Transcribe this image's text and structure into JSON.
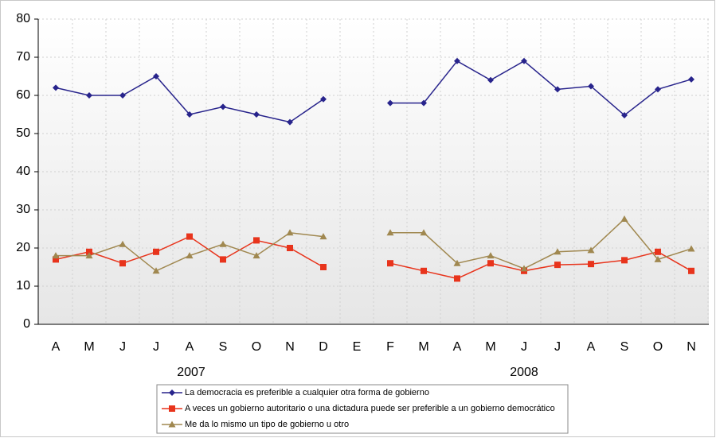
{
  "chart_data": {
    "type": "line",
    "categories": [
      "A",
      "M",
      "J",
      "J",
      "A",
      "S",
      "O",
      "N",
      "D",
      "E",
      "F",
      "M",
      "A",
      "M",
      "J",
      "J",
      "A",
      "S",
      "O",
      "N"
    ],
    "year_labels": [
      "2007",
      "2008"
    ],
    "series": [
      {
        "name": "La democracia es preferible a cualquier otra forma de gobierno",
        "color": "#28248c",
        "marker": "diamond",
        "values": [
          62,
          60,
          60,
          65,
          55,
          57,
          55,
          53,
          59,
          null,
          58,
          58,
          69,
          64,
          69,
          61.6,
          62.4,
          54.8,
          61.6,
          64.2
        ]
      },
      {
        "name": "A veces un gobierno autoritario o una dictadura puede ser preferible a un gobierno democrático",
        "color": "#e8341c",
        "marker": "square",
        "values": [
          17,
          19,
          16,
          19,
          23,
          17,
          22,
          20,
          15,
          null,
          16,
          14,
          12,
          16,
          14,
          15.6,
          15.8,
          16.8,
          19,
          14
        ]
      },
      {
        "name": "Me da lo mismo un tipo de gobierno u otro",
        "color": "#a08850",
        "marker": "triangle",
        "values": [
          18,
          18,
          21,
          14,
          18,
          21,
          18,
          24,
          23,
          null,
          24,
          24,
          16,
          18,
          14.6,
          19,
          19.4,
          27.6,
          17,
          19.8
        ]
      }
    ],
    "ylim": [
      0,
      80
    ],
    "yticks": [
      0,
      10,
      20,
      30,
      40,
      50,
      60,
      70,
      80
    ],
    "grid": true
  }
}
